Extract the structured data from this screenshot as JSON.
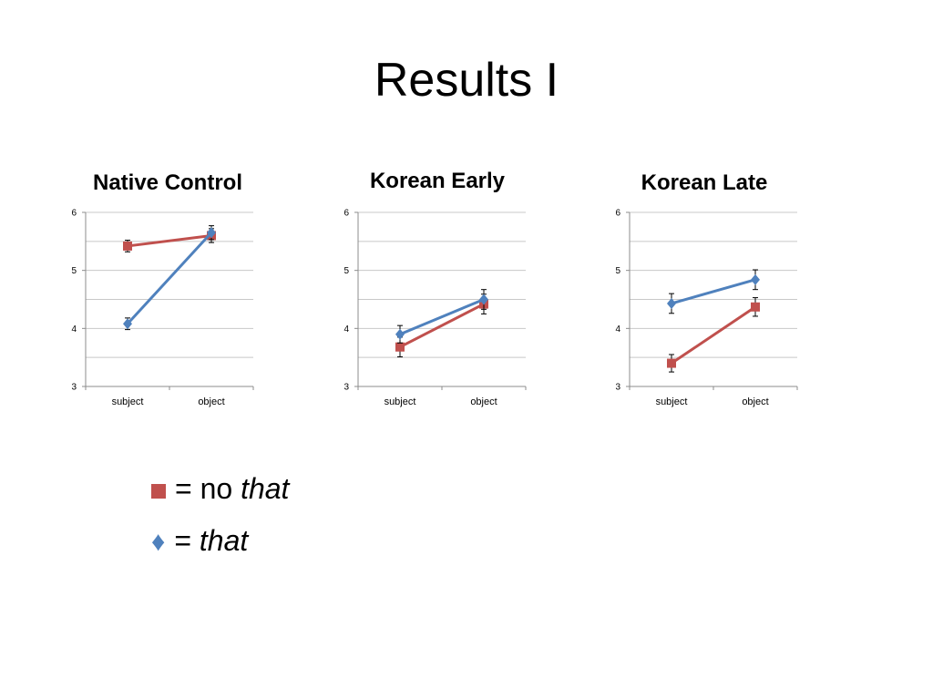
{
  "slide": {
    "title": "Results I"
  },
  "colors": {
    "no_that": "#c0504d",
    "that": "#4f81bd",
    "grid": "#c8c8c8",
    "axis": "#8c8c8c"
  },
  "legend": {
    "no_that": {
      "symbol": "■",
      "prefix": "= no ",
      "italic": "that"
    },
    "that": {
      "symbol": "♦",
      "prefix": "= ",
      "italic": "that"
    }
  },
  "chart_data": [
    {
      "type": "line",
      "title": "Native Control",
      "categories": [
        "subject",
        "object"
      ],
      "ylim": [
        3,
        6
      ],
      "yticks": [
        "3",
        "4",
        "5",
        "6"
      ],
      "grid": true,
      "series": [
        {
          "key": "no_that",
          "values": [
            5.42,
            5.6
          ],
          "errors": [
            0.1,
            0.12
          ]
        },
        {
          "key": "that",
          "values": [
            4.08,
            5.65
          ],
          "errors": [
            0.1,
            0.12
          ]
        }
      ]
    },
    {
      "type": "line",
      "title": "Korean Early",
      "categories": [
        "subject",
        "object"
      ],
      "ylim": [
        3,
        6
      ],
      "yticks": [
        "3",
        "4",
        "5",
        "6"
      ],
      "grid": true,
      "series": [
        {
          "key": "no_that",
          "values": [
            3.68,
            4.42
          ],
          "errors": [
            0.17,
            0.17
          ]
        },
        {
          "key": "that",
          "values": [
            3.9,
            4.5
          ],
          "errors": [
            0.15,
            0.17
          ]
        }
      ]
    },
    {
      "type": "line",
      "title": "Korean Late",
      "categories": [
        "subject",
        "object"
      ],
      "ylim": [
        3,
        6
      ],
      "yticks": [
        "3",
        "4",
        "5",
        "6"
      ],
      "grid": true,
      "series": [
        {
          "key": "no_that",
          "values": [
            3.4,
            4.37
          ],
          "errors": [
            0.15,
            0.16
          ]
        },
        {
          "key": "that",
          "values": [
            4.43,
            4.84
          ],
          "errors": [
            0.17,
            0.17
          ]
        }
      ]
    }
  ]
}
